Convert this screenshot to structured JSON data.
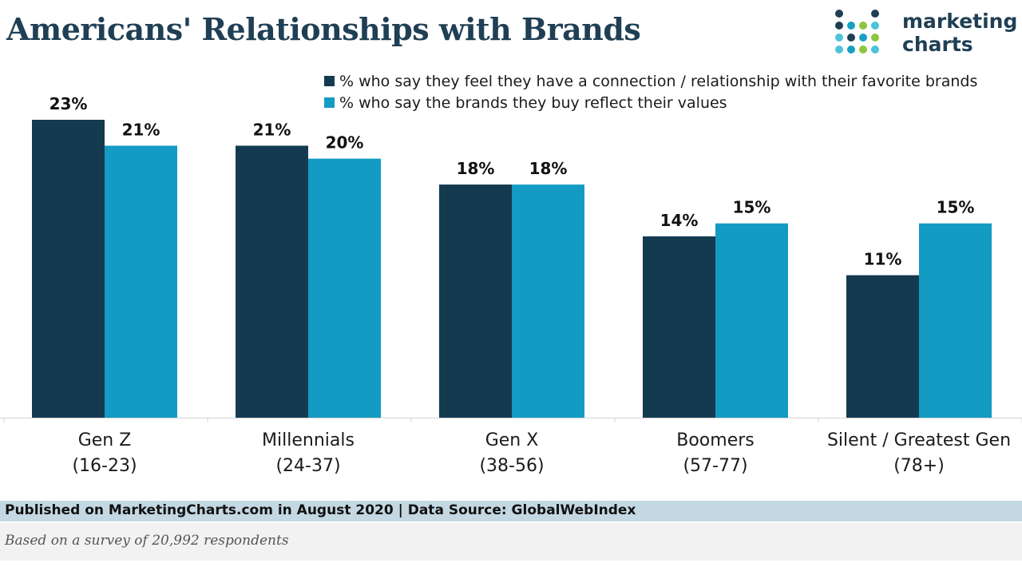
{
  "title": "Americans' Relationships with Brands",
  "logo": {
    "line1": "marketing",
    "line2": "charts",
    "colors": [
      "#1f3f54",
      "#18a0c4",
      "#8cc63f",
      "#4fc3d9"
    ]
  },
  "chart_data": {
    "type": "bar",
    "title": "Americans' Relationships with Brands",
    "categories": [
      "Gen Z",
      "Millennials",
      "Gen X",
      "Boomers",
      "Silent / Greatest Gen"
    ],
    "category_subs": [
      "(16-23)",
      "(24-37)",
      "(38-56)",
      "(57-77)",
      "(78+)"
    ],
    "series": [
      {
        "name": "% who say they feel they have a connection / relationship with their favorite brands",
        "color": "#143a50",
        "values": [
          23,
          21,
          18,
          14,
          11
        ],
        "labels": [
          "23%",
          "21%",
          "18%",
          "14%",
          "11%"
        ]
      },
      {
        "name": "% who say the brands they buy reflect their values",
        "color": "#139bc3",
        "values": [
          21,
          20,
          18,
          15,
          15
        ],
        "labels": [
          "21%",
          "20%",
          "18%",
          "15%",
          "15%"
        ]
      }
    ],
    "ylim": [
      0,
      23
    ],
    "grid": false,
    "legend_position": "top-right"
  },
  "footer": {
    "source": "Published on MarketingCharts.com in August 2020 | Data Source: GlobalWebIndex",
    "note": "Based on a survey of 20,992 respondents"
  }
}
